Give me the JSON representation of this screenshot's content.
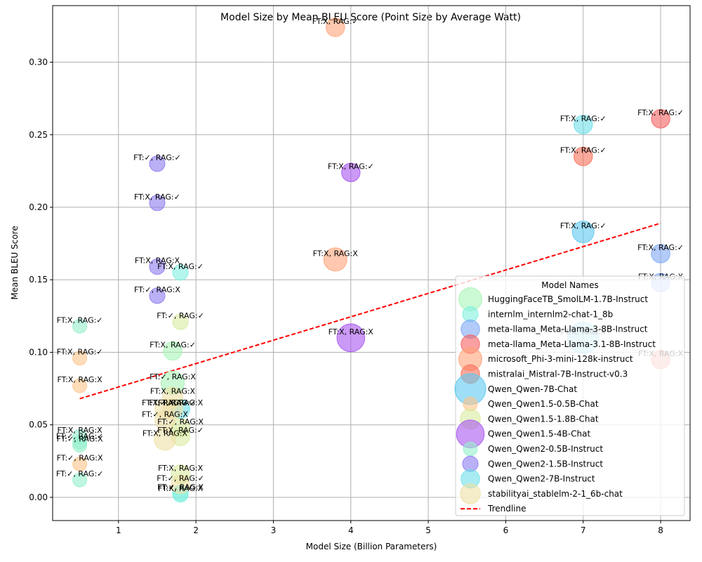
{
  "chart_data": {
    "type": "scatter",
    "title": "Model Size by Mean BLEU Score (Point Size by Average Watt)",
    "xlabel": "Model Size (Billion Parameters)",
    "ylabel": "Mean BLEU Score",
    "xlim": [
      0.15,
      8.38
    ],
    "ylim": [
      -0.016,
      0.339
    ],
    "xticks": [
      1,
      2,
      3,
      4,
      5,
      6,
      7,
      8
    ],
    "yticks": [
      0.0,
      0.05,
      0.1,
      0.15,
      0.2,
      0.25,
      0.3
    ],
    "ytick_labels": [
      "0.00",
      "0.05",
      "0.10",
      "0.15",
      "0.20",
      "0.25",
      "0.30"
    ],
    "grid": true,
    "legend": {
      "title": "Model Names",
      "placement": "lower right",
      "trendline_label": "Trendline"
    },
    "trendline": {
      "x": [
        0.5,
        8.0
      ],
      "y": [
        0.068,
        0.189
      ],
      "color": "#ff0000"
    },
    "series": [
      {
        "name": "HuggingFaceTB_SmolLM-1.7B-Instruct",
        "color": "#a9f5b5",
        "legend_size": 1.5,
        "points": [
          {
            "x": 1.7,
            "y": 0.101,
            "label": "FT:X, RAG:✓",
            "size": 1.2
          },
          {
            "x": 1.7,
            "y": 0.079,
            "label": "FT:✓, RAG:X",
            "size": 1.5
          }
        ]
      },
      {
        "name": "internlm_internlm2-chat-1_8b",
        "color": "#80f0e0",
        "legend_size": 1.0,
        "points": [
          {
            "x": 1.8,
            "y": 0.155,
            "label": "FT:X, RAG:✓",
            "size": 1.0
          },
          {
            "x": 1.8,
            "y": 0.003,
            "label": "FT:✓, RAG:X",
            "size": 1.0
          },
          {
            "x": 1.8,
            "y": 0.002,
            "label": "FT:X, RAG:X",
            "size": 1.0
          }
        ]
      },
      {
        "name": "meta-llama_Meta-Llama-3-8B-Instruct",
        "color": "#7fa8f5",
        "legend_size": 1.2,
        "points": [
          {
            "x": 8.0,
            "y": 0.168,
            "label": "FT:X, RAG:✓",
            "size": 1.2
          },
          {
            "x": 8.0,
            "y": 0.148,
            "label": "FT:X, RAG:X",
            "size": 1.2
          }
        ]
      },
      {
        "name": "meta-llama_Meta-Llama-3.1-8B-Instruct",
        "color": "#f56060",
        "legend_size": 1.2,
        "points": [
          {
            "x": 8.0,
            "y": 0.261,
            "label": "FT:X, RAG:✓",
            "size": 1.2
          }
        ]
      },
      {
        "name": "microsoft_Phi-3-mini-128k-instruct",
        "color": "#ffa47a",
        "legend_size": 1.5,
        "points": [
          {
            "x": 3.8,
            "y": 0.324,
            "label": "FT:X, RAG:✓",
            "size": 1.2
          },
          {
            "x": 3.8,
            "y": 0.164,
            "label": "FT:X, RAG:X",
            "size": 1.5
          }
        ]
      },
      {
        "name": "mistralai_Mistral-7B-Instruct-v0.3",
        "color": "#f87058",
        "legend_size": 1.2,
        "points": [
          {
            "x": 7.0,
            "y": 0.235,
            "label": "FT:X, RAG:✓",
            "size": 1.2
          },
          {
            "x": 8.0,
            "y": 0.095,
            "label": "FT:X, RAG:X",
            "size": 1.2
          }
        ]
      },
      {
        "name": "Qwen_Qwen-7B-Chat",
        "color": "#5ec8f0",
        "legend_size": 2.0,
        "points": [
          {
            "x": 7.0,
            "y": 0.183,
            "label": "FT:X, RAG:✓",
            "size": 1.4
          },
          {
            "x": 7.0,
            "y": 0.11,
            "label": "FT:X, RAG:X",
            "size": 2.0
          }
        ]
      },
      {
        "name": "Qwen_Qwen1.5-0.5B-Chat",
        "color": "#ffc48a",
        "legend_size": 0.9,
        "points": [
          {
            "x": 0.5,
            "y": 0.096,
            "label": "FT:X, RAG:✓",
            "size": 0.9
          },
          {
            "x": 0.5,
            "y": 0.077,
            "label": "FT:X, RAG:X",
            "size": 0.9
          },
          {
            "x": 0.5,
            "y": 0.023,
            "label": "FT:✓, RAG:X",
            "size": 0.9
          }
        ]
      },
      {
        "name": "Qwen_Qwen1.5-1.8B-Chat",
        "color": "#d8eca0",
        "legend_size": 1.3,
        "points": [
          {
            "x": 1.8,
            "y": 0.121,
            "label": "FT:✓, RAG:✓",
            "size": 1.0
          },
          {
            "x": 1.8,
            "y": 0.048,
            "label": "FT:✓, RAG:X",
            "size": 1.2
          },
          {
            "x": 1.8,
            "y": 0.042,
            "label": "FT:X, RAG:✓",
            "size": 1.2
          },
          {
            "x": 1.8,
            "y": 0.016,
            "label": "FT:X, RAG:X",
            "size": 1.2
          }
        ]
      },
      {
        "name": "Qwen_Qwen1.5-4B-Chat",
        "color": "#a855f0",
        "legend_size": 1.8,
        "points": [
          {
            "x": 4.0,
            "y": 0.224,
            "label": "FT:X, RAG:✓",
            "size": 1.2
          },
          {
            "x": 4.0,
            "y": 0.11,
            "label": "FT:X, RAG:X",
            "size": 1.8
          }
        ]
      },
      {
        "name": "Qwen_Qwen2-0.5B-Instruct",
        "color": "#94f0cc",
        "legend_size": 0.9,
        "points": [
          {
            "x": 0.5,
            "y": 0.118,
            "label": "FT:X, RAG:✓",
            "size": 0.9
          },
          {
            "x": 0.5,
            "y": 0.042,
            "label": "FT:X, RAG:X",
            "size": 0.9
          },
          {
            "x": 0.5,
            "y": 0.038,
            "label": "FT:✓, RAG:✓",
            "size": 0.9
          },
          {
            "x": 0.5,
            "y": 0.036,
            "label": "FT:✓, RAG:X",
            "size": 0.9
          },
          {
            "x": 0.5,
            "y": 0.012,
            "label": "FT:✓, RAG:✓",
            "size": 0.9
          }
        ]
      },
      {
        "name": "Qwen_Qwen2-1.5B-Instruct",
        "color": "#8c7cf0",
        "legend_size": 1.0,
        "points": [
          {
            "x": 1.5,
            "y": 0.23,
            "label": "FT:✓, RAG:✓",
            "size": 1.0
          },
          {
            "x": 1.5,
            "y": 0.203,
            "label": "FT:X, RAG:✓",
            "size": 1.0
          },
          {
            "x": 1.5,
            "y": 0.159,
            "label": "FT:X, RAG:X",
            "size": 1.0
          },
          {
            "x": 1.5,
            "y": 0.139,
            "label": "FT:✓, RAG:X",
            "size": 1.0
          }
        ]
      },
      {
        "name": "Qwen_Qwen2-7B-Instruct",
        "color": "#6ee0ea",
        "legend_size": 1.2,
        "points": [
          {
            "x": 7.0,
            "y": 0.257,
            "label": "FT:X, RAG:✓",
            "size": 1.2
          },
          {
            "x": 1.8,
            "y": 0.061,
            "label": "FT:X, RAG:X",
            "size": 1.2
          }
        ]
      },
      {
        "name": "stabilityai_stablelm-2-1_6b-chat",
        "color": "#eee0a6",
        "legend_size": 1.3,
        "points": [
          {
            "x": 1.7,
            "y": 0.069,
            "label": "FT:X, RAG:X",
            "size": 1.3
          },
          {
            "x": 1.7,
            "y": 0.061,
            "label": "FT:✓, RAG:✓",
            "size": 1.3
          },
          {
            "x": 1.6,
            "y": 0.061,
            "label": "FT:X, RAG:✓",
            "size": 1.3
          },
          {
            "x": 1.6,
            "y": 0.053,
            "label": "FT:✓, RAG:X",
            "size": 1.3
          },
          {
            "x": 1.6,
            "y": 0.04,
            "label": "FT:X, RAG:X",
            "size": 1.4
          },
          {
            "x": 1.8,
            "y": 0.009,
            "label": "FT:✓, RAG:✓",
            "size": 1.2
          }
        ]
      }
    ]
  }
}
